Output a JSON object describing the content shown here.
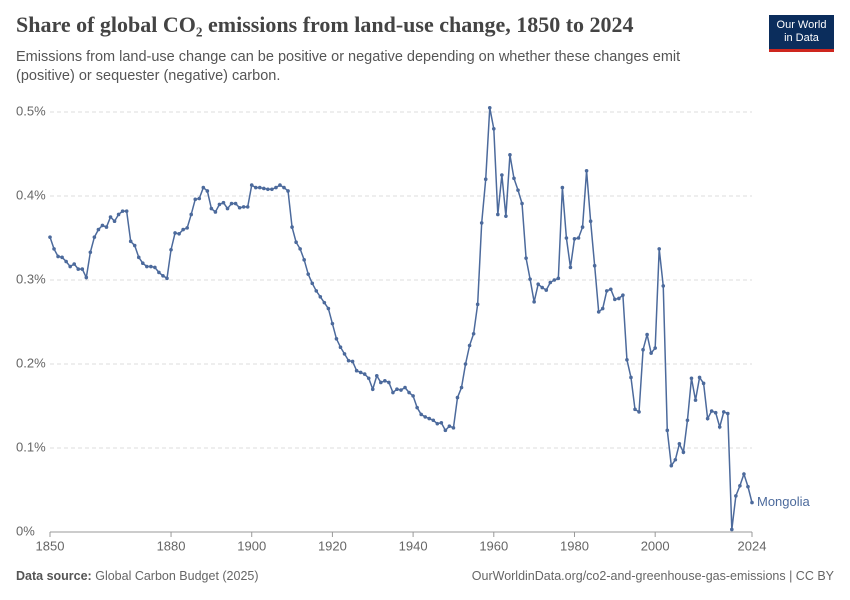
{
  "chart_data": {
    "type": "line",
    "title": "Share of global CO₂ emissions from land-use change, 1850 to 2024",
    "subtitle": "Emissions from land-use change can be positive or negative depending on whether these changes emit (positive) or sequester (negative) carbon.",
    "logo": [
      "Our World",
      "in Data"
    ],
    "source_label": "Data source:",
    "source": "Global Carbon Budget (2025)",
    "credit": "OurWorldinData.org/co2-and-greenhouse-gas-emissions | CC BY",
    "x": [
      1850,
      1851,
      1852,
      1853,
      1854,
      1855,
      1856,
      1857,
      1858,
      1859,
      1860,
      1861,
      1862,
      1863,
      1864,
      1865,
      1866,
      1867,
      1868,
      1869,
      1870,
      1871,
      1872,
      1873,
      1874,
      1875,
      1876,
      1877,
      1878,
      1879,
      1880,
      1881,
      1882,
      1883,
      1884,
      1885,
      1886,
      1887,
      1888,
      1889,
      1890,
      1891,
      1892,
      1893,
      1894,
      1895,
      1896,
      1897,
      1898,
      1899,
      1900,
      1901,
      1902,
      1903,
      1904,
      1905,
      1906,
      1907,
      1908,
      1909,
      1910,
      1911,
      1912,
      1913,
      1914,
      1915,
      1916,
      1917,
      1918,
      1919,
      1920,
      1921,
      1922,
      1923,
      1924,
      1925,
      1926,
      1927,
      1928,
      1929,
      1930,
      1931,
      1932,
      1933,
      1934,
      1935,
      1936,
      1937,
      1938,
      1939,
      1940,
      1941,
      1942,
      1943,
      1944,
      1945,
      1946,
      1947,
      1948,
      1949,
      1950,
      1951,
      1952,
      1953,
      1954,
      1955,
      1956,
      1957,
      1958,
      1959,
      1960,
      1961,
      1962,
      1963,
      1964,
      1965,
      1966,
      1967,
      1968,
      1969,
      1970,
      1971,
      1972,
      1973,
      1974,
      1975,
      1976,
      1977,
      1978,
      1979,
      1980,
      1981,
      1982,
      1983,
      1984,
      1985,
      1986,
      1987,
      1988,
      1989,
      1990,
      1991,
      1992,
      1993,
      1994,
      1995,
      1996,
      1997,
      1998,
      1999,
      2000,
      2001,
      2002,
      2003,
      2004,
      2005,
      2006,
      2007,
      2008,
      2009,
      2010,
      2011,
      2012,
      2013,
      2014,
      2015,
      2016,
      2017,
      2018,
      2019,
      2020,
      2021,
      2022,
      2023,
      2024
    ],
    "series": [
      {
        "name": "Mongolia",
        "color": "#4c6a9c",
        "values": [
          0.351,
          0.337,
          0.328,
          0.327,
          0.322,
          0.316,
          0.319,
          0.313,
          0.313,
          0.303,
          0.333,
          0.351,
          0.36,
          0.365,
          0.363,
          0.375,
          0.37,
          0.378,
          0.382,
          0.382,
          0.346,
          0.341,
          0.327,
          0.32,
          0.316,
          0.316,
          0.315,
          0.309,
          0.305,
          0.302,
          0.336,
          0.356,
          0.355,
          0.36,
          0.362,
          0.378,
          0.396,
          0.397,
          0.41,
          0.406,
          0.385,
          0.381,
          0.39,
          0.392,
          0.385,
          0.391,
          0.391,
          0.386,
          0.387,
          0.387,
          0.413,
          0.41,
          0.41,
          0.409,
          0.408,
          0.408,
          0.41,
          0.413,
          0.41,
          0.406,
          0.363,
          0.345,
          0.337,
          0.324,
          0.307,
          0.296,
          0.287,
          0.28,
          0.273,
          0.266,
          0.248,
          0.23,
          0.22,
          0.212,
          0.204,
          0.203,
          0.192,
          0.19,
          0.188,
          0.183,
          0.17,
          0.186,
          0.178,
          0.18,
          0.178,
          0.166,
          0.17,
          0.169,
          0.172,
          0.166,
          0.162,
          0.148,
          0.14,
          0.137,
          0.135,
          0.133,
          0.129,
          0.13,
          0.121,
          0.126,
          0.124,
          0.16,
          0.172,
          0.2,
          0.222,
          0.236,
          0.271,
          0.368,
          0.42,
          0.505,
          0.48,
          0.378,
          0.425,
          0.376,
          0.449,
          0.421,
          0.407,
          0.391,
          0.326,
          0.301,
          0.274,
          0.295,
          0.291,
          0.288,
          0.297,
          0.3,
          0.302,
          0.41,
          0.35,
          0.315,
          0.349,
          0.35,
          0.363,
          0.43,
          0.37,
          0.317,
          0.262,
          0.266,
          0.287,
          0.289,
          0.277,
          0.278,
          0.282,
          0.205,
          0.184,
          0.146,
          0.143,
          0.217,
          0.235,
          0.213,
          0.219,
          0.337,
          0.293,
          0.121,
          0.079,
          0.086,
          0.105,
          0.095,
          0.133,
          0.183,
          0.157,
          0.184,
          0.177,
          0.135,
          0.144,
          0.142,
          0.125,
          0.143,
          0.141,
          0.003,
          0.043,
          0.055,
          0.069,
          0.054,
          0.035
        ]
      }
    ],
    "xlim": [
      1850,
      2024
    ],
    "xticks": [
      1850,
      1880,
      1900,
      1920,
      1940,
      1960,
      1980,
      2000,
      2024
    ],
    "ylim": [
      0,
      0.5
    ],
    "yticks": [
      {
        "value": 0,
        "label": "0%"
      },
      {
        "value": 0.1,
        "label": "0.1%"
      },
      {
        "value": 0.2,
        "label": "0.2%"
      },
      {
        "value": 0.3,
        "label": "0.3%"
      },
      {
        "value": 0.4,
        "label": "0.4%"
      },
      {
        "value": 0.5,
        "label": "0.5%"
      }
    ],
    "grid": true
  }
}
